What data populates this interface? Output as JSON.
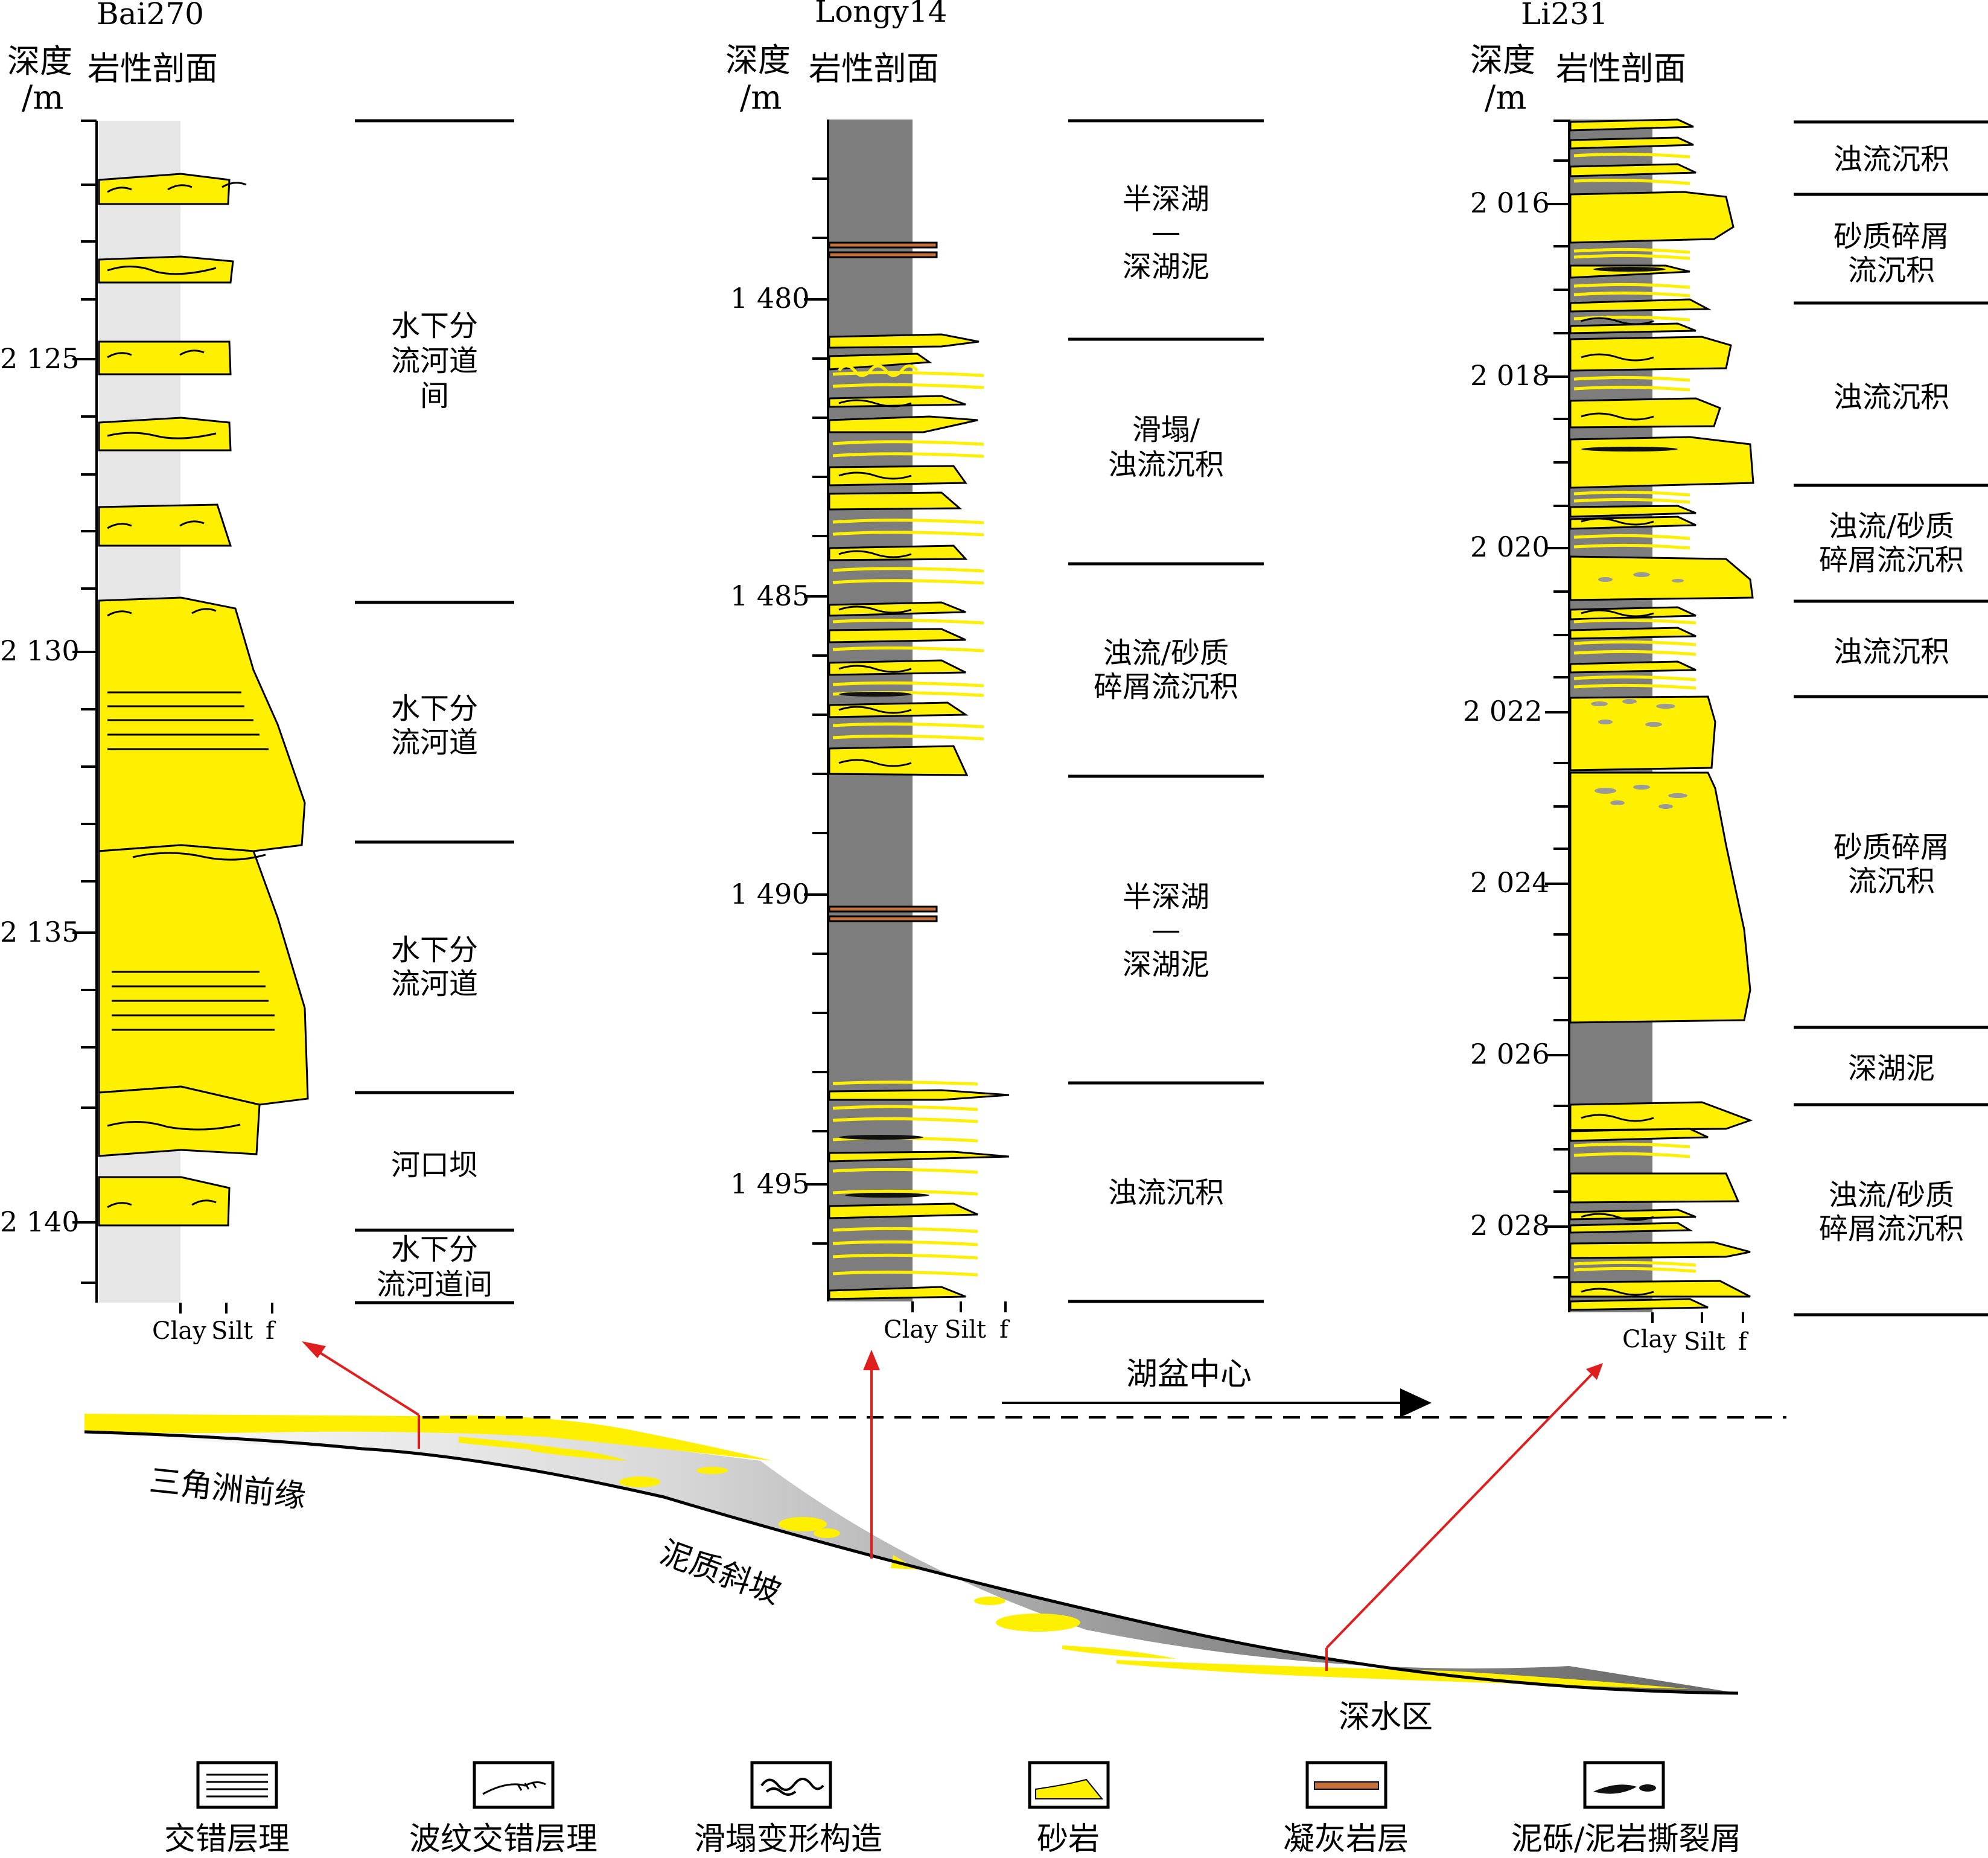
{
  "columns": [
    {
      "well": "Bai270",
      "depth_label": "深度",
      "depth_unit": "/m",
      "profile_label": "岩性剖面",
      "depth_ticks": [
        "2 125",
        "2 130",
        "2 135",
        "2 140"
      ],
      "grain_size_labels": [
        "Clay",
        "Silt",
        "f"
      ],
      "interpretation": [
        {
          "lines": [
            "水下分",
            "流河道",
            "间"
          ]
        },
        {
          "lines": [
            "水下分",
            "流河道"
          ]
        },
        {
          "lines": [
            "水下分",
            "流河道"
          ]
        },
        {
          "lines": [
            "河口坝"
          ]
        },
        {
          "lines": [
            "水下分",
            "流河道间"
          ]
        }
      ]
    },
    {
      "well": "Longy14",
      "depth_label": "深度",
      "depth_unit": "/m",
      "profile_label": "岩性剖面",
      "depth_ticks": [
        "1 480",
        "1 485",
        "1 490",
        "1 495"
      ],
      "grain_size_labels": [
        "Clay",
        "Silt",
        "f"
      ],
      "interpretation": [
        {
          "lines": [
            "半深湖",
            "—",
            "深湖泥"
          ]
        },
        {
          "lines": [
            "滑塌/",
            "浊流沉积"
          ]
        },
        {
          "lines": [
            "浊流/砂质",
            "碎屑流沉积"
          ]
        },
        {
          "lines": [
            "半深湖",
            "—",
            "深湖泥"
          ]
        },
        {
          "lines": [
            "浊流沉积"
          ]
        }
      ]
    },
    {
      "well": "Li231",
      "depth_label": "深度",
      "depth_unit": "/m",
      "profile_label": "岩性剖面",
      "depth_ticks": [
        "2 016",
        "2 018",
        "2 020",
        "2 022",
        "2 024",
        "2 026",
        "2 028"
      ],
      "grain_size_labels": [
        "Clay",
        "Silt",
        "f"
      ],
      "interpretation": [
        {
          "lines": [
            "浊流沉积"
          ]
        },
        {
          "lines": [
            "砂质碎屑",
            "流沉积"
          ]
        },
        {
          "lines": [
            "浊流沉积"
          ]
        },
        {
          "lines": [
            "浊流/砂质",
            "碎屑流沉积"
          ]
        },
        {
          "lines": [
            "浊流沉积"
          ]
        },
        {
          "lines": [
            "砂质碎屑",
            "流沉积"
          ]
        },
        {
          "lines": [
            "深湖泥"
          ]
        },
        {
          "lines": [
            "浊流/砂质",
            "碎屑流沉积"
          ]
        }
      ]
    }
  ],
  "cross_section": {
    "basin_center": "湖盆中心",
    "delta_front": "三角洲前缘",
    "muddy_slope": "泥质斜坡",
    "deep_water": "深水区"
  },
  "legend": [
    {
      "label": "交错层理",
      "icon": "cross-bedding-icon"
    },
    {
      "label": "波纹交错层理",
      "icon": "ripple-cross-lamination-icon"
    },
    {
      "label": "滑塌变形构造",
      "icon": "slump-deformation-icon"
    },
    {
      "label": "砂岩",
      "icon": "sandstone-icon"
    },
    {
      "label": "凝灰岩层",
      "icon": "tuff-layer-icon"
    },
    {
      "label": "泥砾/泥岩撕裂屑",
      "icon": "mud-clast-icon"
    }
  ],
  "colors": {
    "sand": "#ffef00",
    "mud_dark": "#7d7d7d",
    "mud_light": "#e6e6e6",
    "tuff": "#c8703a",
    "arrow": "#e11e1e"
  }
}
